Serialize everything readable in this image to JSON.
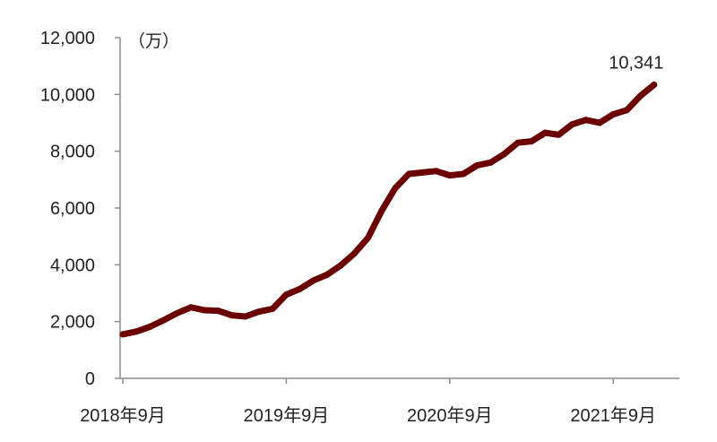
{
  "chart_data": {
    "type": "line",
    "unit_label": "（万）",
    "ylim": [
      0,
      12000
    ],
    "yticks": [
      0,
      2000,
      4000,
      6000,
      8000,
      10000,
      12000
    ],
    "ytick_labels": [
      "0",
      "2,000",
      "4,000",
      "6,000",
      "8,000",
      "10,000",
      "12,000"
    ],
    "x_tick_labels": [
      "2018年9月",
      "2019年9月",
      "2020年9月",
      "2021年9月"
    ],
    "x_tick_index": [
      0,
      12,
      24,
      36
    ],
    "grid": false,
    "line_color": "#6b0000",
    "x": [
      "2018-09",
      "2018-10",
      "2018-11",
      "2018-12",
      "2019-01",
      "2019-02",
      "2019-03",
      "2019-04",
      "2019-05",
      "2019-06",
      "2019-07",
      "2019-08",
      "2019-09",
      "2019-10",
      "2019-11",
      "2019-12",
      "2020-01",
      "2020-02",
      "2020-03",
      "2020-04",
      "2020-05",
      "2020-06",
      "2020-07",
      "2020-08",
      "2020-09",
      "2020-10",
      "2020-11",
      "2020-12",
      "2021-01",
      "2021-02",
      "2021-03",
      "2021-04",
      "2021-05",
      "2021-06",
      "2021-07",
      "2021-08",
      "2021-09",
      "2021-10",
      "2021-11",
      "2021-12"
    ],
    "series": [
      {
        "values": [
          1550,
          1650,
          1820,
          2050,
          2300,
          2500,
          2400,
          2380,
          2220,
          2180,
          2350,
          2450,
          2950,
          3150,
          3450,
          3650,
          3980,
          4400,
          4950,
          5900,
          6700,
          7200,
          7250,
          7300,
          7150,
          7200,
          7500,
          7600,
          7900,
          8300,
          8350,
          8650,
          8580,
          8950,
          9100,
          9000,
          9300,
          9450,
          9950,
          10341
        ]
      }
    ],
    "end_label": "10,341"
  }
}
